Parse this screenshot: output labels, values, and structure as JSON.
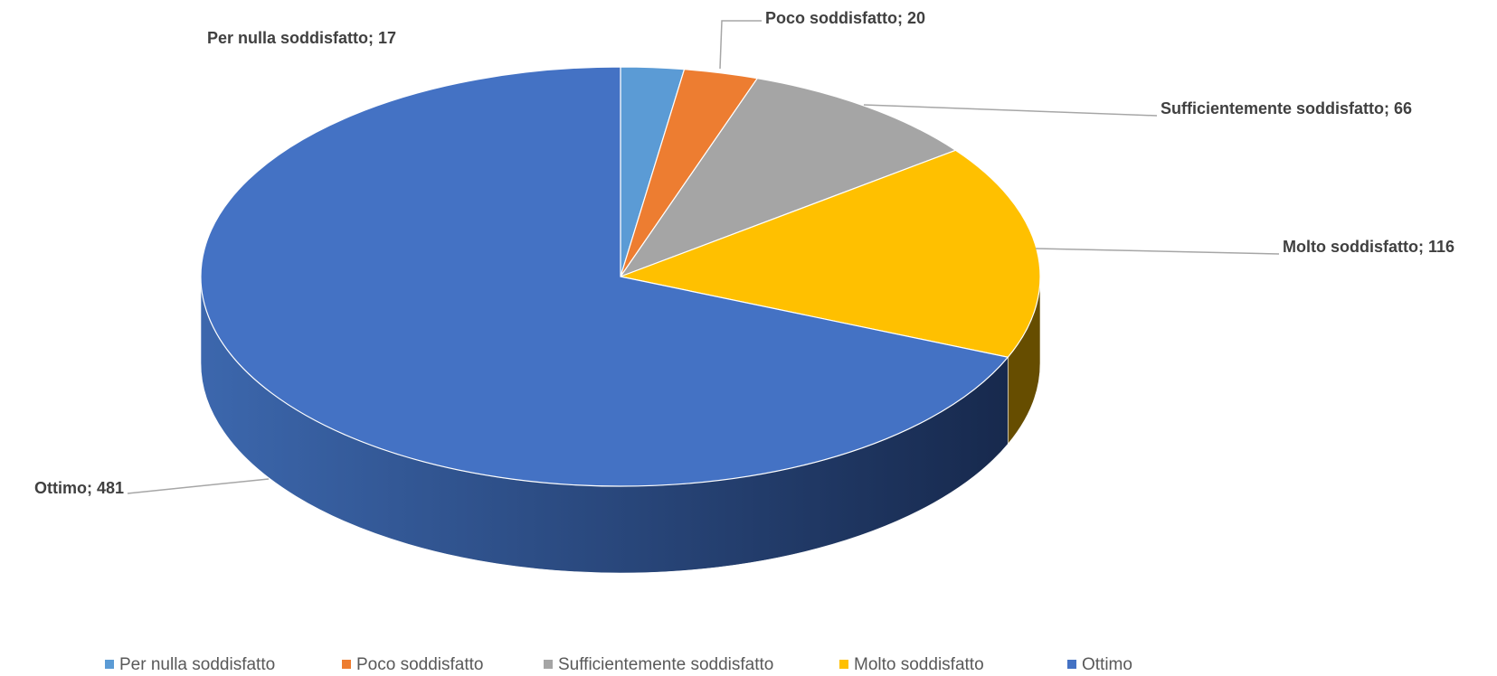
{
  "chart_data": {
    "type": "pie",
    "style": "3d",
    "categories": [
      "Per nulla soddisfatto",
      "Poco soddisfatto",
      "Sufficientemente soddisfatto",
      "Molto soddisfatto",
      "Ottimo"
    ],
    "values": [
      17,
      20,
      66,
      116,
      481
    ],
    "value_labels": [
      "Per nulla soddisfatto; 17",
      "Poco soddisfatto; 20",
      "Sufficientemente soddisfatto; 66",
      "Molto soddisfatto; 116",
      "Ottimo; 481"
    ],
    "colors": [
      "#5b9bd5",
      "#ed7d31",
      "#a5a5a5",
      "#ffc000",
      "#4472c4"
    ],
    "legend": "bottom"
  }
}
